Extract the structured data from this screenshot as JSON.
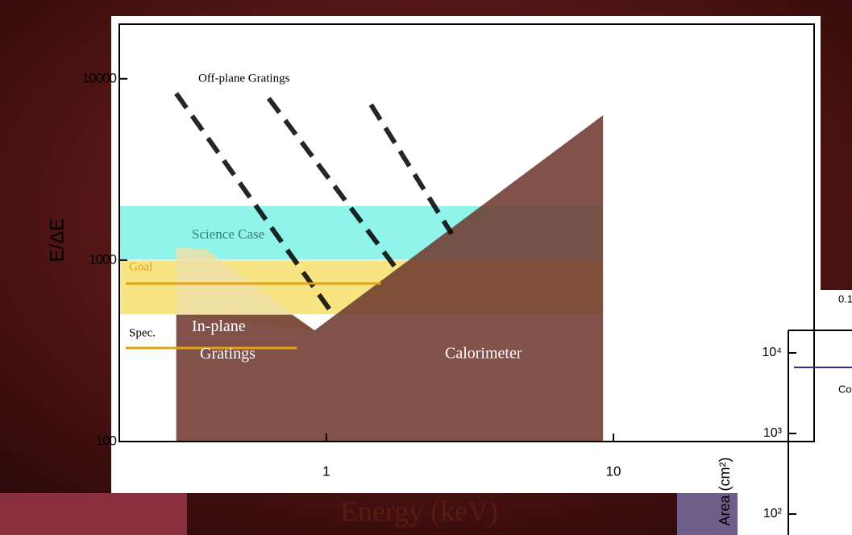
{
  "chart_data": {
    "type": "region",
    "x_label": "Energy (keV)",
    "y_label": "E/ΔE",
    "log_x": true,
    "log_y": true,
    "xlim": [
      0.19,
      50
    ],
    "ylim": [
      100,
      20000
    ],
    "xticks": [
      1,
      10
    ],
    "yticks": [
      100,
      1000,
      10000
    ],
    "regions": [
      {
        "name": "Science Case",
        "color": "#7cf2e6",
        "x": [
          0.19,
          9.2,
          9.2,
          0.19
        ],
        "y": [
          1000,
          1000,
          2000,
          2000
        ]
      },
      {
        "name": "Goal",
        "color": "#f6df6c",
        "x": [
          0.19,
          9.2,
          9.2,
          0.19
        ],
        "y": [
          500,
          500,
          1000,
          1000
        ]
      },
      {
        "name": "In-plane Gratings",
        "color": "#efe0a8",
        "x": [
          0.3,
          0.38,
          0.91,
          0.3
        ],
        "y": [
          1170,
          1150,
          410,
          500
        ]
      },
      {
        "name": "Calorimeter",
        "color": "#6e3a30",
        "x": [
          0.3,
          0.3,
          0.76,
          0.91,
          9.2,
          9.2
        ],
        "y": [
          100,
          500,
          500,
          410,
          6300,
          100
        ]
      }
    ],
    "dashed": {
      "name": "Off-plane Gratings",
      "color": "#000000",
      "lines": [
        {
          "x": [
            0.3,
            1.03
          ],
          "y": [
            8300,
            530
          ]
        },
        {
          "x": [
            0.63,
            1.77
          ],
          "y": [
            7800,
            880
          ]
        },
        {
          "x": [
            1.43,
            2.73
          ],
          "y": [
            7200,
            1400
          ]
        }
      ]
    },
    "levels": [
      {
        "name": "Goal",
        "color": "#e0a21a",
        "x": [
          0.2,
          1.55
        ],
        "y": [
          743,
          743
        ]
      },
      {
        "name": "Spec.",
        "color": "#e0a21a",
        "x": [
          0.2,
          0.79
        ],
        "y": [
          328,
          328
        ]
      }
    ]
  },
  "background_panel": {
    "top_label": "0.1",
    "legend_fragment": "Co",
    "y_label": "Area (cm²)",
    "yticks": [
      {
        "value": 10000,
        "label": "10⁴"
      },
      {
        "value": 1000,
        "label": "10³"
      },
      {
        "value": 100,
        "label": "10²"
      }
    ]
  }
}
